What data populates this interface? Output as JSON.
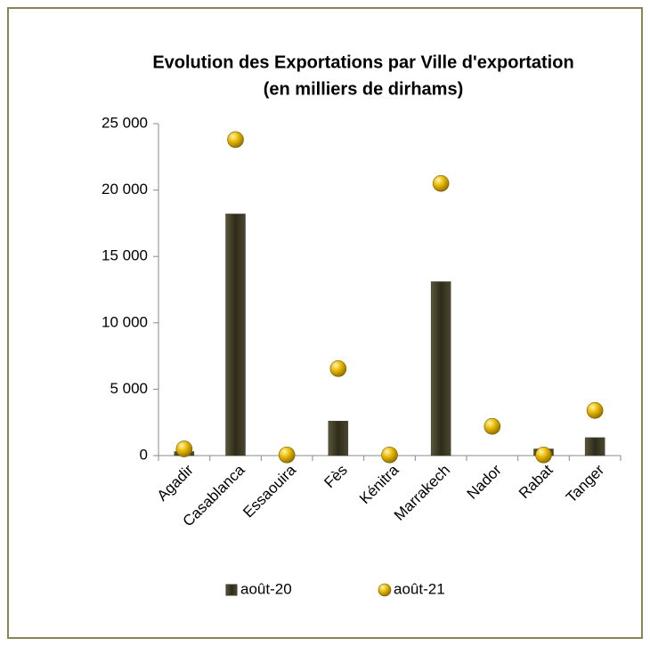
{
  "chart_data": {
    "type": "bar_dot",
    "title": "Evolution des Exportations par Ville d'exportation",
    "subtitle": "(en milliers de dirhams)",
    "categories": [
      "Agadir",
      "Casablanca",
      "Essaouira",
      "Fès",
      "Kénitra",
      "Marrakech",
      "Nador",
      "Rabat",
      "Tanger"
    ],
    "series": [
      {
        "name": "août-20",
        "color": "#3d3a26",
        "mark": "bar",
        "values": [
          300,
          18200,
          0,
          2600,
          0,
          13100,
          0,
          500,
          1350
        ]
      },
      {
        "name": "août-21",
        "color": "#e8b800",
        "mark": "dot",
        "values": [
          500,
          23800,
          50,
          6550,
          50,
          20500,
          2200,
          50,
          3400
        ]
      }
    ],
    "ylim": [
      0,
      25000
    ],
    "yticks": [
      0,
      {
        "value": 5000,
        "label": "5 000"
      },
      {
        "value": 10000,
        "label": "10 000"
      },
      {
        "value": 15000,
        "label": "15 000"
      },
      {
        "value": 20000,
        "label": "20 000"
      },
      {
        "value": 25000,
        "label": "25 000"
      }
    ],
    "grid": false,
    "legend": "bottom"
  }
}
